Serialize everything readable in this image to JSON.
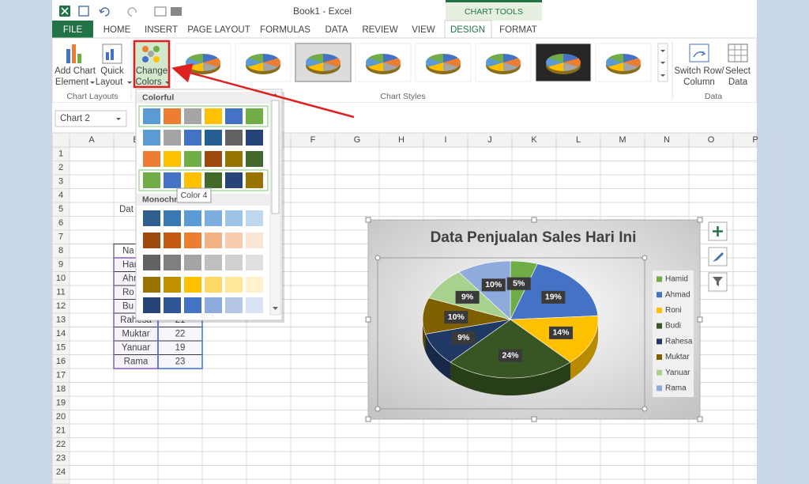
{
  "window": {
    "title": "Book1 - Excel",
    "context_tab": "CHART TOOLS"
  },
  "tabs": [
    "FILE",
    "HOME",
    "INSERT",
    "PAGE LAYOUT",
    "FORMULAS",
    "DATA",
    "REVIEW",
    "VIEW",
    "DESIGN",
    "FORMAT"
  ],
  "ribbon": {
    "buttons": [
      [
        "Add Chart",
        "Element"
      ],
      [
        "Quick",
        "Layout"
      ],
      [
        "Change",
        "Colors"
      ],
      [
        "Switch Row/",
        "Column"
      ],
      [
        "Select",
        "Data"
      ]
    ],
    "groups": [
      "Chart Layouts",
      "Chart Styles",
      "Data"
    ]
  },
  "name_box": "Chart 2",
  "columns": [
    "A",
    "B",
    "F",
    "G",
    "H",
    "I",
    "J",
    "K",
    "L",
    "M",
    "N",
    "O",
    "P"
  ],
  "rows": [
    1,
    2,
    3,
    4,
    5,
    6,
    7,
    8,
    9,
    10,
    11,
    12,
    13,
    14,
    15,
    16,
    17,
    18,
    19,
    20,
    21,
    22,
    23,
    24
  ],
  "sheet": {
    "title_cell": "Dat",
    "header": "Na",
    "names": [
      "Har",
      "Ahr",
      "Ro",
      "Bu",
      "Rahesa",
      "Muktar",
      "Yanuar",
      "Rama"
    ],
    "values": [
      21,
      22,
      19,
      23
    ]
  },
  "color_menu": {
    "sections": [
      "Colorful",
      "Monochr"
    ],
    "tooltip": "Color 4"
  },
  "chart": {
    "type": "pie",
    "title": "Data Penjualan Sales Hari Ini",
    "categories": [
      "Hamid",
      "Ahmad",
      "Roni",
      "Budi",
      "Rahesa",
      "Muktar",
      "Yanuar",
      "Rama"
    ],
    "values": [
      5,
      19,
      14,
      24,
      9,
      10,
      9,
      10
    ],
    "value_labels": [
      "5%",
      "19%",
      "14%",
      "24%",
      "9%",
      "10%",
      "9%",
      "10%"
    ],
    "colors": [
      "#70ad47",
      "#4472c4",
      "#ffc000",
      "#375623",
      "#203864",
      "#7f6000",
      "#a9d18e",
      "#8faadc"
    ]
  }
}
